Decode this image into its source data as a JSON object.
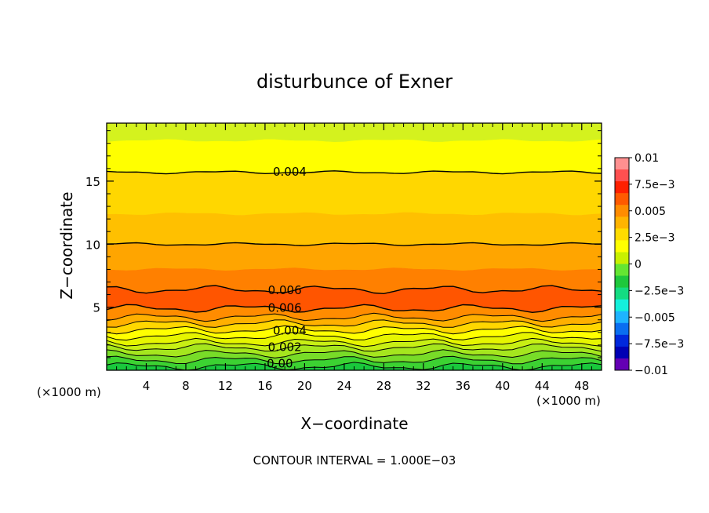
{
  "chart_data": {
    "type": "contour",
    "title": "disturbunce of Exner",
    "xlabel": "X−coordinate",
    "ylabel": "Z−coordinate",
    "x_unit_left": "(×1000 m)",
    "x_unit_right": "(×1000 m)",
    "footer": "CONTOUR INTERVAL = 1.000E−03",
    "xlim": [
      0,
      50
    ],
    "ylim": [
      0,
      19.6
    ],
    "x_ticks": [
      4,
      8,
      12,
      16,
      20,
      24,
      28,
      32,
      36,
      40,
      44,
      48
    ],
    "y_ticks": [
      5,
      10,
      15
    ],
    "contour_interval": 0.001,
    "contour_labels": [
      {
        "text": "0.004",
        "x": 18.5,
        "y": 15.8
      },
      {
        "text": "0.006",
        "x": 18,
        "y": 6.4
      },
      {
        "text": "0.006",
        "x": 18,
        "y": 5.0
      },
      {
        "text": "0.004",
        "x": 18.5,
        "y": 3.2
      },
      {
        "text": "0.002",
        "x": 18,
        "y": 1.9
      },
      {
        "text": "0.00",
        "x": 17.5,
        "y": 0.6
      }
    ],
    "bands": [
      {
        "ymin": 18.2,
        "ymax": 19.6,
        "color": "#d4f21e"
      },
      {
        "ymin": 15.7,
        "ymax": 18.2,
        "color": "#ffff00"
      },
      {
        "ymin": 12.4,
        "ymax": 15.7,
        "color": "#ffd700"
      },
      {
        "ymin": 10.0,
        "ymax": 12.4,
        "color": "#ffc000"
      },
      {
        "ymin": 8.0,
        "ymax": 10.0,
        "color": "#ffa500"
      },
      {
        "ymin": 6.4,
        "ymax": 8.0,
        "color": "#ff8000"
      },
      {
        "ymin": 4.9,
        "ymax": 6.4,
        "color": "#ff5500"
      },
      {
        "ymin": 4.2,
        "ymax": 4.9,
        "color": "#ff8c00"
      },
      {
        "ymin": 3.7,
        "ymax": 4.2,
        "color": "#ffb000"
      },
      {
        "ymin": 3.2,
        "ymax": 3.7,
        "color": "#ffd700"
      },
      {
        "ymin": 2.7,
        "ymax": 3.2,
        "color": "#ffff00"
      },
      {
        "ymin": 2.2,
        "ymax": 2.7,
        "color": "#e6f500"
      },
      {
        "ymin": 1.8,
        "ymax": 2.2,
        "color": "#c8ef14"
      },
      {
        "ymin": 1.3,
        "ymax": 1.8,
        "color": "#a5e61e"
      },
      {
        "ymin": 0.8,
        "ymax": 1.3,
        "color": "#78dc28"
      },
      {
        "ymin": 0.3,
        "ymax": 0.8,
        "color": "#3cd232"
      },
      {
        "ymin": 0.0,
        "ymax": 0.3,
        "color": "#19c83c"
      }
    ],
    "contour_lines_y": [
      15.7,
      10.0,
      6.4,
      4.9,
      4.2,
      3.7,
      3.2,
      2.7,
      2.2,
      1.8,
      1.3,
      0.8,
      0.3
    ],
    "colorbar": {
      "colors_top_to_bottom": [
        "#ff9090",
        "#ff5050",
        "#ff2000",
        "#ff5a00",
        "#ff8c00",
        "#ffb400",
        "#ffdc00",
        "#ffff00",
        "#c8f000",
        "#64e632",
        "#1ec83c",
        "#14dc82",
        "#14f0dc",
        "#1eb4ff",
        "#0a6ef0",
        "#0028dc",
        "#0000b4",
        "#6400b4"
      ],
      "labels": [
        "0.01",
        "7.5e−3",
        "0.005",
        "2.5e−3",
        "0",
        "−2.5e−3",
        "−0.005",
        "−7.5e−3",
        "−0.01"
      ],
      "range": [
        -0.01,
        0.01
      ]
    }
  }
}
